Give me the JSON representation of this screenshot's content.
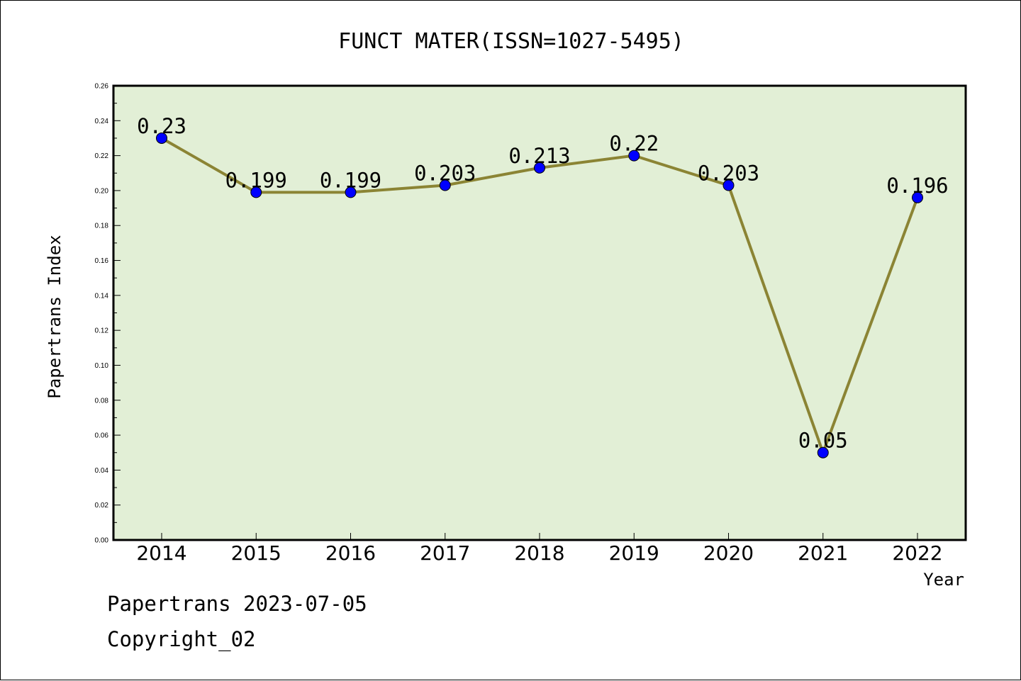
{
  "chart_data": {
    "type": "line",
    "title": "FUNCT MATER(ISSN=1027-5495)",
    "xlabel": "Year",
    "ylabel": "Papertrans Index",
    "categories": [
      "2014",
      "2015",
      "2016",
      "2017",
      "2018",
      "2019",
      "2020",
      "2021",
      "2022"
    ],
    "values": [
      0.23,
      0.199,
      0.199,
      0.203,
      0.213,
      0.22,
      0.203,
      0.05,
      0.196
    ],
    "data_labels": [
      "0.23",
      "0.199",
      "0.199",
      "0.203",
      "0.213",
      "0.22",
      "0.203",
      "0.05",
      "0.196"
    ],
    "ylim": [
      0,
      0.26
    ],
    "yticks": [
      "0.00",
      "0.02",
      "0.04",
      "0.06",
      "0.08",
      "0.10",
      "0.12",
      "0.14",
      "0.16",
      "0.18",
      "0.20",
      "0.22",
      "0.24",
      "0.26"
    ],
    "grid": false,
    "colors": {
      "plot_background": "#e2efd6",
      "line": "#8b8434",
      "marker": "#0000ff"
    }
  },
  "footer": {
    "line1": "Papertrans 2023-07-05",
    "line2": "Copyright_02"
  }
}
